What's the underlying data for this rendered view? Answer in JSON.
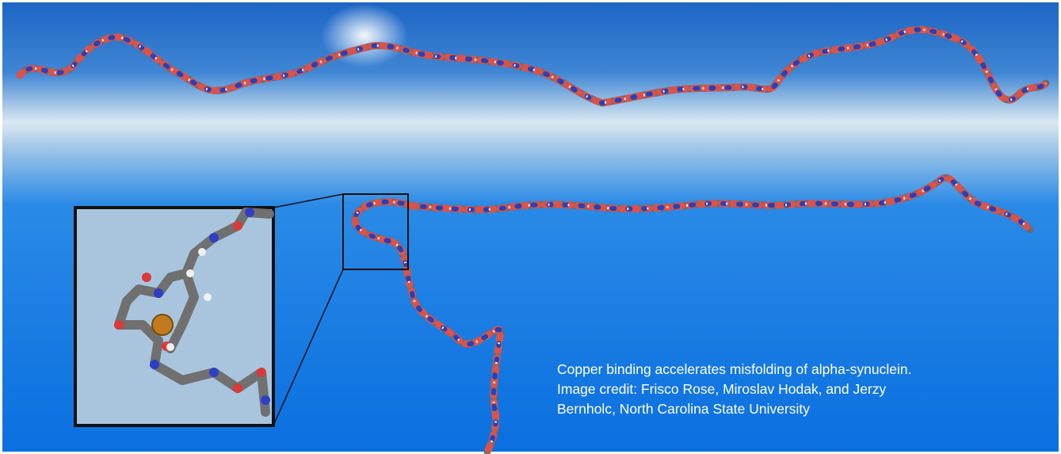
{
  "caption": {
    "lines": [
      "Copper binding accelerates misfolding of alpha-synuclein.",
      "Image credit: Frisco Rose, Miroslav Hodak, and Jerzy",
      "Bernholc, North Carolina State University"
    ]
  }
}
